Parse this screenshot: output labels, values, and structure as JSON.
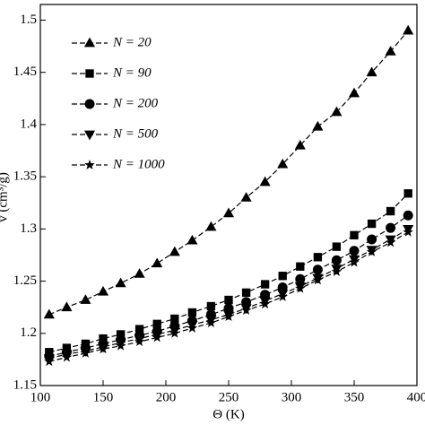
{
  "chart_data": {
    "type": "line",
    "x_label": "Θ (K)",
    "y_label": "v (cm³/g)",
    "x": [
      107,
      121,
      136,
      150,
      164,
      179,
      193,
      207,
      221,
      236,
      250,
      264,
      279,
      293,
      307,
      321,
      336,
      350,
      364,
      379,
      393
    ],
    "series": [
      {
        "name": "N = 20",
        "color": "#000000",
        "marker": "triangle-up",
        "values": [
          1.218,
          1.225,
          1.232,
          1.24,
          1.248,
          1.257,
          1.267,
          1.278,
          1.289,
          1.302,
          1.315,
          1.33,
          1.345,
          1.362,
          1.38,
          1.398,
          1.412,
          1.43,
          1.45,
          1.47,
          1.49
        ]
      },
      {
        "name": "N = 90",
        "color": "#000000",
        "marker": "square",
        "values": [
          1.182,
          1.186,
          1.19,
          1.195,
          1.199,
          1.204,
          1.209,
          1.214,
          1.22,
          1.226,
          1.232,
          1.239,
          1.247,
          1.255,
          1.264,
          1.273,
          1.283,
          1.294,
          1.305,
          1.317,
          1.334
        ]
      },
      {
        "name": "N = 200",
        "color": "#000000",
        "marker": "circle",
        "values": [
          1.178,
          1.182,
          1.186,
          1.19,
          1.194,
          1.198,
          1.202,
          1.207,
          1.212,
          1.218,
          1.224,
          1.23,
          1.237,
          1.244,
          1.252,
          1.261,
          1.27,
          1.279,
          1.29,
          1.301,
          1.313
        ]
      },
      {
        "name": "N = 500",
        "color": "#000000",
        "marker": "triangle-down",
        "values": [
          1.176,
          1.18,
          1.183,
          1.187,
          1.191,
          1.195,
          1.199,
          1.203,
          1.208,
          1.213,
          1.218,
          1.224,
          1.231,
          1.238,
          1.245,
          1.253,
          1.262,
          1.271,
          1.28,
          1.29,
          1.3
        ]
      },
      {
        "name": "N = 1000",
        "color": "#000000",
        "marker": "star",
        "values": [
          1.173,
          1.177,
          1.181,
          1.185,
          1.188,
          1.192,
          1.196,
          1.2,
          1.205,
          1.21,
          1.216,
          1.222,
          1.228,
          1.235,
          1.243,
          1.251,
          1.259,
          1.268,
          1.278,
          1.287,
          1.297
        ]
      }
    ],
    "xlim": [
      100,
      400
    ],
    "xticks": [
      100,
      150,
      200,
      250,
      300,
      350,
      400
    ],
    "ylim": [
      1.15,
      1.515
    ],
    "yticks": [
      1.15,
      1.2,
      1.25,
      1.3,
      1.35,
      1.4,
      1.45,
      1.5
    ],
    "legend": "upper left",
    "grid": false
  }
}
